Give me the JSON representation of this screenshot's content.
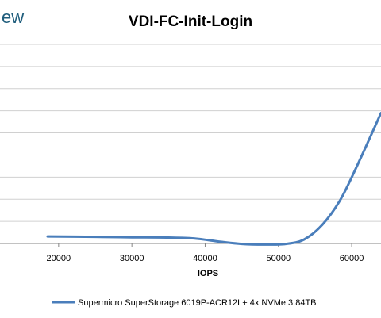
{
  "logo_fragment": "ew",
  "chart_data": {
    "type": "line",
    "title": "VDI-FC-Init-Login",
    "xlabel": "IOPS",
    "ylabel": "",
    "xlim": [
      12000,
      64000
    ],
    "ylim": [
      0,
      9
    ],
    "x_ticks": [
      20000,
      30000,
      40000,
      50000,
      60000
    ],
    "x_tick_labels": [
      "20000",
      "30000",
      "40000",
      "50000",
      "60000"
    ],
    "y_gridlines": [
      0,
      1,
      2,
      3,
      4,
      5,
      6,
      7,
      8,
      9
    ],
    "grid": true,
    "legend_position": "bottom",
    "series": [
      {
        "name": "Supermicro SuperStorage 6019P-ACR12L+ 4x NVMe 3.84TB",
        "color": "#4a7ebb",
        "x": [
          18500,
          25000,
          30000,
          35000,
          38500,
          42000,
          45000,
          48000,
          51000,
          53500,
          56000,
          58500,
          61000,
          64000
        ],
        "y": [
          0.32,
          0.3,
          0.28,
          0.27,
          0.23,
          0.08,
          -0.02,
          -0.05,
          -0.02,
          0.18,
          0.85,
          2.0,
          3.7,
          5.9
        ]
      }
    ]
  }
}
